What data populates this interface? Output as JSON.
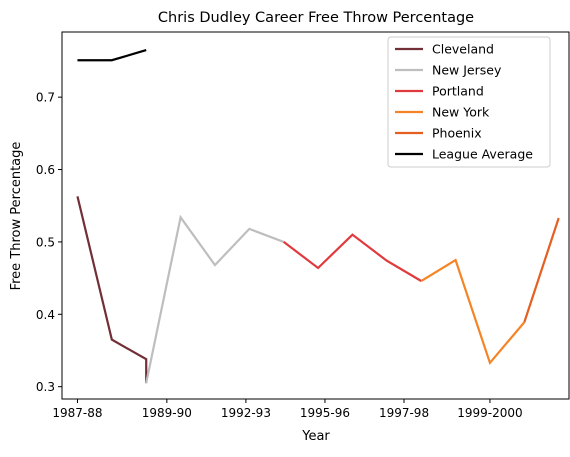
{
  "chart_data": {
    "type": "line",
    "title": "Chris Dudley Career Free Throw Percentage",
    "xlabel": "Year",
    "ylabel": "Free Throw Percentage",
    "x_ticks": [
      "1987-88",
      "1989-90",
      "1992-93",
      "1995-96",
      "1997-98",
      "1999-2000"
    ],
    "x_tick_positions": [
      0,
      2.6,
      4.9,
      7.2,
      9.5,
      12.0
    ],
    "y_ticks": [
      0.3,
      0.4,
      0.5,
      0.6,
      0.7
    ],
    "xlim": [
      -0.45,
      14.3
    ],
    "ylim": [
      0.283,
      0.79
    ],
    "grid": false,
    "legend_placement": "top-right",
    "series": [
      {
        "name": "Cleveland",
        "color": "#722F37",
        "points": [
          [
            0,
            0.563
          ],
          [
            1,
            0.365
          ],
          [
            2,
            0.338
          ],
          [
            2,
            0.305
          ]
        ]
      },
      {
        "name": "New Jersey",
        "color": "#BEBEBE",
        "points": [
          [
            2,
            0.305
          ],
          [
            3,
            0.534
          ],
          [
            4,
            0.468
          ],
          [
            5,
            0.518
          ],
          [
            6,
            0.5
          ]
        ]
      },
      {
        "name": "Portland",
        "color": "#E03A3E",
        "points": [
          [
            6,
            0.5
          ],
          [
            7,
            0.464
          ],
          [
            8,
            0.51
          ],
          [
            9,
            0.474
          ],
          [
            10,
            0.446
          ]
        ]
      },
      {
        "name": "New York",
        "color": "#F58426",
        "points": [
          [
            10,
            0.446
          ],
          [
            11,
            0.475
          ],
          [
            12,
            0.333
          ],
          [
            13,
            0.389
          ]
        ]
      },
      {
        "name": "Phoenix",
        "color": "#E56020",
        "points": [
          [
            13,
            0.389
          ],
          [
            14,
            0.533
          ]
        ]
      },
      {
        "name": "League Average",
        "color": "#000000",
        "points": [
          [
            0,
            0.751
          ],
          [
            1,
            0.751
          ],
          [
            2,
            0.765
          ]
        ]
      }
    ]
  }
}
